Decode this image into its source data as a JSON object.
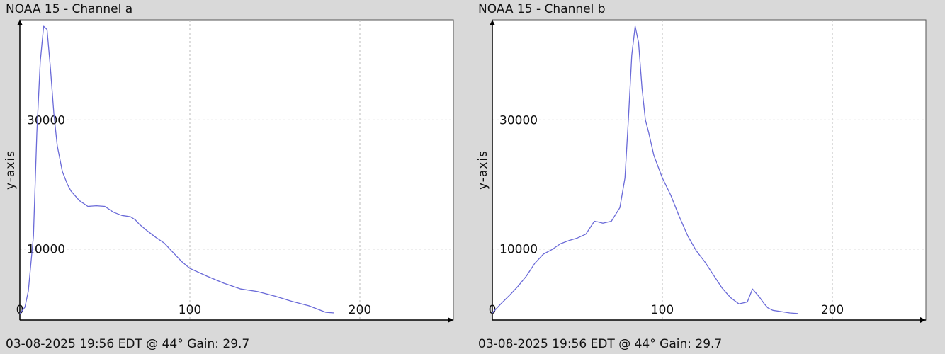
{
  "chart_data": [
    {
      "type": "line",
      "title": "NOAA 15 - Channel a",
      "ylabel": "y-axis",
      "xlabel": "",
      "footer": "03-08-2025 19:56 EDT @ 44° Gain: 29.7",
      "xlim": [
        0,
        255
      ],
      "ylim": [
        -1000,
        45500
      ],
      "xticks": [
        0,
        100,
        200
      ],
      "yticks": [
        10000,
        30000
      ],
      "grid": true,
      "line_color": "#6a6ad8",
      "series": [
        {
          "x": [
            0,
            3,
            5,
            8,
            10,
            12,
            14,
            16,
            18,
            20,
            22,
            25,
            28,
            30,
            35,
            40,
            45,
            50,
            55,
            60,
            65,
            68,
            70,
            75,
            80,
            85,
            90,
            95,
            100,
            110,
            120,
            130,
            140,
            150,
            160,
            170,
            180,
            185
          ],
          "y": [
            0,
            1000,
            3500,
            12000,
            28000,
            39000,
            44500,
            44000,
            38000,
            31000,
            26000,
            22000,
            20000,
            19000,
            17500,
            16600,
            16700,
            16600,
            15700,
            15200,
            15000,
            14500,
            13900,
            12800,
            11800,
            10900,
            9500,
            8100,
            7000,
            5800,
            4700,
            3800,
            3400,
            2700,
            1900,
            1200,
            200,
            100
          ]
        }
      ]
    },
    {
      "type": "line",
      "title": "NOAA 15 - Channel b",
      "ylabel": "y-axis",
      "xlabel": "",
      "footer": "03-08-2025 19:56 EDT @ 44° Gain: 29.7",
      "xlim": [
        0,
        255
      ],
      "ylim": [
        -1000,
        45500
      ],
      "xticks": [
        0,
        100,
        200
      ],
      "yticks": [
        10000,
        30000
      ],
      "grid": true,
      "line_color": "#6a6ad8",
      "series": [
        {
          "x": [
            0,
            5,
            10,
            15,
            20,
            25,
            30,
            35,
            40,
            45,
            50,
            55,
            60,
            62,
            65,
            70,
            75,
            78,
            80,
            82,
            84,
            86,
            88,
            90,
            92,
            95,
            100,
            105,
            110,
            115,
            120,
            125,
            130,
            135,
            140,
            145,
            150,
            153,
            157,
            160,
            162,
            165,
            170,
            175,
            180
          ],
          "y": [
            100,
            1500,
            2800,
            4200,
            5800,
            7800,
            9200,
            9900,
            10800,
            11300,
            11700,
            12300,
            14300,
            14200,
            14000,
            14300,
            16400,
            21000,
            30000,
            40000,
            44500,
            42000,
            35000,
            30000,
            28000,
            24500,
            21000,
            18300,
            15000,
            12000,
            9700,
            8000,
            6000,
            4000,
            2500,
            1500,
            1800,
            3800,
            2600,
            1500,
            900,
            500,
            300,
            100,
            0
          ]
        }
      ]
    }
  ]
}
